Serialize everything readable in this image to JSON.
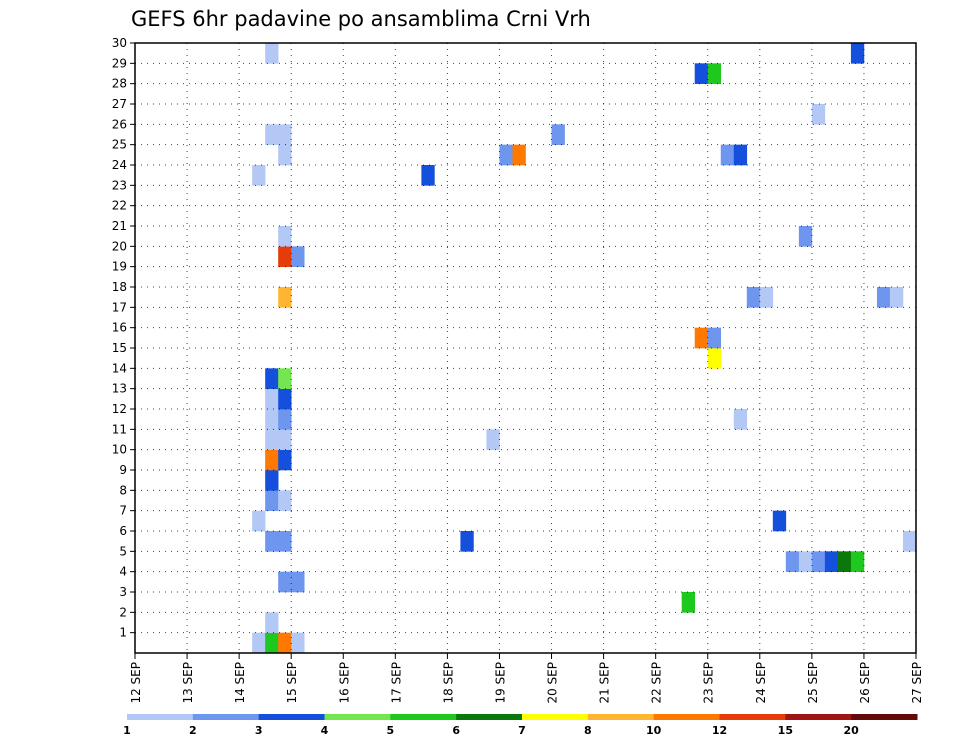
{
  "chart_data": {
    "type": "heatmap",
    "title": "GEFS 6hr padavine po ansamblima Crni Vrh",
    "xlabel": "",
    "ylabel": "",
    "x_ticks": [
      "12 SEP",
      "13 SEP",
      "14 SEP",
      "15 SEP",
      "16 SEP",
      "17 SEP",
      "18 SEP",
      "19 SEP",
      "20 SEP",
      "21 SEP",
      "22 SEP",
      "23 SEP",
      "24 SEP",
      "25 SEP",
      "26 SEP",
      "27 SEP"
    ],
    "y_ticks": [
      "1",
      "2",
      "3",
      "4",
      "5",
      "6",
      "7",
      "8",
      "9",
      "10",
      "11",
      "12",
      "13",
      "14",
      "15",
      "16",
      "17",
      "18",
      "19",
      "20",
      "21",
      "22",
      "23",
      "24",
      "25",
      "26",
      "27",
      "28",
      "29",
      "30"
    ],
    "xlim": [
      0,
      60
    ],
    "ylim": [
      0,
      30
    ],
    "grid": true,
    "time_step_hours": 6,
    "members": 30,
    "color_levels": [
      1,
      2,
      3,
      4,
      5,
      6,
      7,
      8,
      10,
      12,
      15,
      20
    ],
    "colors": [
      "#b4c8f5",
      "#6e96ee",
      "#1450dc",
      "#73e650",
      "#1ec81e",
      "#0a780a",
      "#ffff00",
      "#ffb432",
      "#ff7800",
      "#e63c0a",
      "#a01414",
      "#640a0a"
    ],
    "colorbar_labels": [
      "1",
      "2",
      "3",
      "4",
      "5",
      "6",
      "7",
      "8",
      "10",
      "12",
      "15",
      "20"
    ],
    "cells": [
      {
        "step": 9,
        "member": 0,
        "value": 1.5
      },
      {
        "step": 10,
        "member": 0,
        "value": 5.5
      },
      {
        "step": 11,
        "member": 0,
        "value": 11
      },
      {
        "step": 12,
        "member": 0,
        "value": 1.5
      },
      {
        "step": 10,
        "member": 1,
        "value": 1.5
      },
      {
        "step": 42,
        "member": 2,
        "value": 5.5
      },
      {
        "step": 11,
        "member": 3,
        "value": 2.5
      },
      {
        "step": 12,
        "member": 3,
        "value": 2.5
      },
      {
        "step": 50,
        "member": 4,
        "value": 2.5
      },
      {
        "step": 51,
        "member": 4,
        "value": 1.5
      },
      {
        "step": 52,
        "member": 4,
        "value": 2.5
      },
      {
        "step": 53,
        "member": 4,
        "value": 3.5
      },
      {
        "step": 54,
        "member": 4,
        "value": 6.5
      },
      {
        "step": 55,
        "member": 4,
        "value": 5.5
      },
      {
        "step": 10,
        "member": 5,
        "value": 2.5
      },
      {
        "step": 11,
        "member": 5,
        "value": 2.5
      },
      {
        "step": 25,
        "member": 5,
        "value": 3.5
      },
      {
        "step": 59,
        "member": 5,
        "value": 1.5
      },
      {
        "step": 9,
        "member": 6,
        "value": 1.5
      },
      {
        "step": 49,
        "member": 6,
        "value": 3.5
      },
      {
        "step": 10,
        "member": 7,
        "value": 2.5
      },
      {
        "step": 11,
        "member": 7,
        "value": 1.5
      },
      {
        "step": 10,
        "member": 8,
        "value": 3.5
      },
      {
        "step": 10,
        "member": 9,
        "value": 11
      },
      {
        "step": 11,
        "member": 9,
        "value": 3.5
      },
      {
        "step": 10,
        "member": 10,
        "value": 1.5
      },
      {
        "step": 11,
        "member": 10,
        "value": 1.5
      },
      {
        "step": 27,
        "member": 10,
        "value": 1.5
      },
      {
        "step": 10,
        "member": 11,
        "value": 1.5
      },
      {
        "step": 11,
        "member": 11,
        "value": 2.5
      },
      {
        "step": 46,
        "member": 11,
        "value": 1.5
      },
      {
        "step": 10,
        "member": 12,
        "value": 1.5
      },
      {
        "step": 11,
        "member": 12,
        "value": 3.5
      },
      {
        "step": 10,
        "member": 13,
        "value": 3.5
      },
      {
        "step": 11,
        "member": 13,
        "value": 4.5
      },
      {
        "step": 44,
        "member": 14,
        "value": 7.5
      },
      {
        "step": 43,
        "member": 15,
        "value": 11
      },
      {
        "step": 44,
        "member": 15,
        "value": 2.5
      },
      {
        "step": 11,
        "member": 17,
        "value": 9
      },
      {
        "step": 47,
        "member": 17,
        "value": 2.5
      },
      {
        "step": 48,
        "member": 17,
        "value": 1.5
      },
      {
        "step": 57,
        "member": 17,
        "value": 2.5
      },
      {
        "step": 58,
        "member": 17,
        "value": 1.5
      },
      {
        "step": 11,
        "member": 19,
        "value": 13
      },
      {
        "step": 12,
        "member": 19,
        "value": 2.5
      },
      {
        "step": 11,
        "member": 20,
        "value": 1.5
      },
      {
        "step": 51,
        "member": 20,
        "value": 2.5
      },
      {
        "step": 9,
        "member": 23,
        "value": 1.5
      },
      {
        "step": 22,
        "member": 23,
        "value": 3.5
      },
      {
        "step": 11,
        "member": 24,
        "value": 1.5
      },
      {
        "step": 28,
        "member": 24,
        "value": 2.5
      },
      {
        "step": 29,
        "member": 24,
        "value": 11
      },
      {
        "step": 45,
        "member": 24,
        "value": 2.5
      },
      {
        "step": 46,
        "member": 24,
        "value": 3.5
      },
      {
        "step": 10,
        "member": 25,
        "value": 1.5
      },
      {
        "step": 11,
        "member": 25,
        "value": 1.5
      },
      {
        "step": 32,
        "member": 25,
        "value": 2.5
      },
      {
        "step": 52,
        "member": 26,
        "value": 1.5
      },
      {
        "step": 43,
        "member": 28,
        "value": 3.5
      },
      {
        "step": 44,
        "member": 28,
        "value": 5.5
      },
      {
        "step": 10,
        "member": 29,
        "value": 1.5
      },
      {
        "step": 55,
        "member": 29,
        "value": 3.5
      }
    ]
  }
}
